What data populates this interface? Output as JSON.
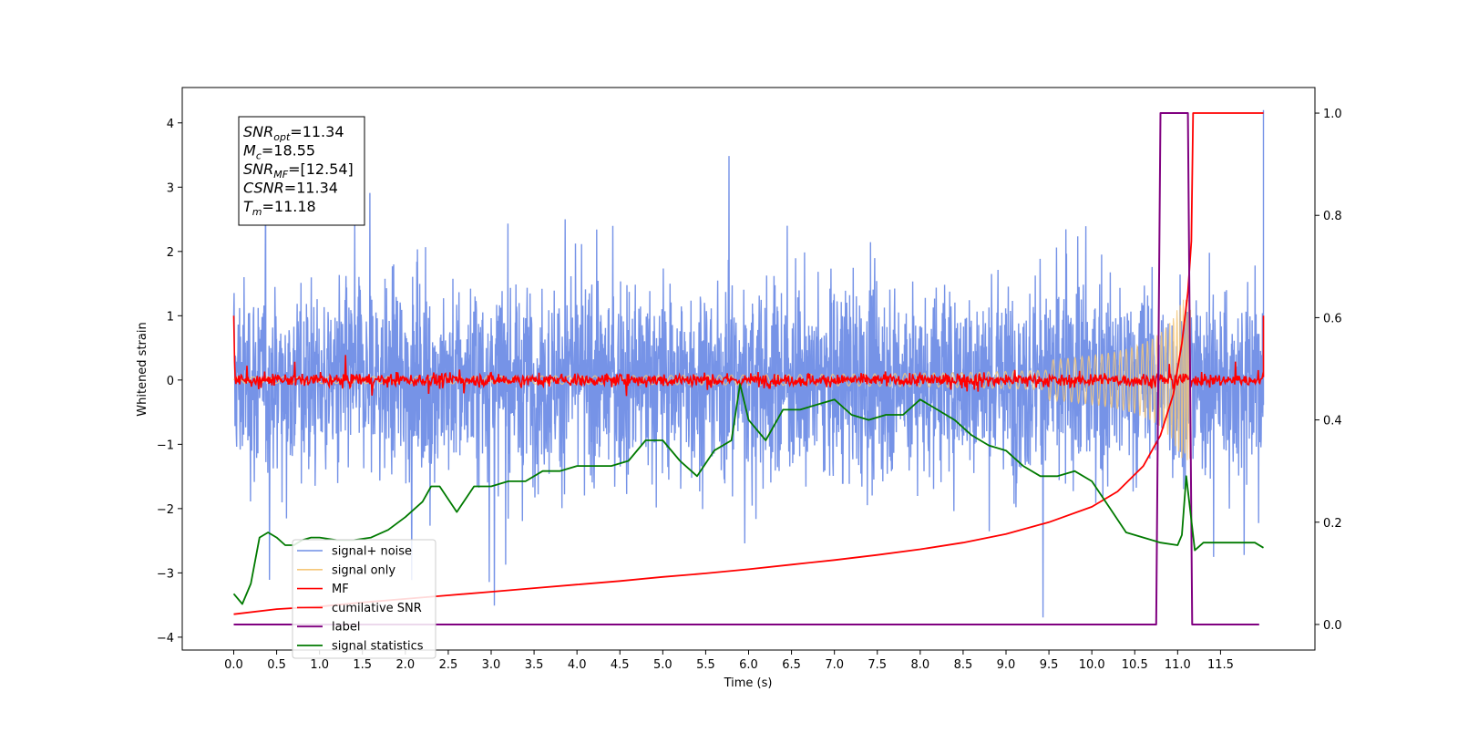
{
  "chart_data": {
    "type": "line",
    "xlabel": "Time (s)",
    "ylabel": "Whitened strain",
    "xlim": [
      -0.6,
      12.6
    ],
    "ylim_left": [
      -4.2,
      4.55
    ],
    "ylim_right": [
      -0.05,
      1.05
    ],
    "x_ticks": [
      0.0,
      0.5,
      1.0,
      1.5,
      2.0,
      2.5,
      3.0,
      3.5,
      4.0,
      4.5,
      5.0,
      5.5,
      6.0,
      6.5,
      7.0,
      7.5,
      8.0,
      8.5,
      9.0,
      9.5,
      10.0,
      10.5,
      11.0,
      11.5
    ],
    "x_tick_labels": [
      "0.0",
      "0.5",
      "1.0",
      "1.5",
      "2.0",
      "2.5",
      "3.0",
      "3.5",
      "4.0",
      "4.5",
      "5.0",
      "5.5",
      "6.0",
      "6.5",
      "7.0",
      "7.5",
      "8.0",
      "8.5",
      "9.0",
      "9.5",
      "10.0",
      "10.5",
      "11.0",
      "11.5"
    ],
    "y_left_ticks": [
      -4,
      -3,
      -2,
      -1,
      0,
      1,
      2,
      3,
      4
    ],
    "y_left_tick_labels": [
      "−4",
      "−3",
      "−2",
      "−1",
      "0",
      "1",
      "2",
      "3",
      "4"
    ],
    "y_right_ticks": [
      0.0,
      0.2,
      0.4,
      0.6,
      0.8,
      1.0
    ],
    "y_right_tick_labels": [
      "0.0",
      "0.2",
      "0.4",
      "0.6",
      "0.8",
      "1.0"
    ],
    "grid": false,
    "legend_position": "lower-left",
    "annotation": [
      {
        "base": "SNR",
        "sub": "opt",
        "value": "=11.34"
      },
      {
        "base": "M",
        "sub": "c",
        "value": "=18.55"
      },
      {
        "base": "SNR",
        "sub": "MF",
        "value": "=[12.54]"
      },
      {
        "base": "CSNR",
        "sub": "",
        "value": "=11.34"
      },
      {
        "base": "T",
        "sub": "m",
        "value": "=11.18"
      }
    ],
    "series": [
      {
        "name": "signal+ noise",
        "color": "#6f8de6",
        "axis": "left",
        "style": "noise band approx. ±1.6 around 0 with spikes to ±3.6; chirp spike to 4.2 near t=11.95"
      },
      {
        "name": "signal only",
        "color": "#f5c87a",
        "axis": "left",
        "style": "chirp envelope growing from 0 to about ±1.2 near t=11.1"
      },
      {
        "name": "MF",
        "color": "#ff0000",
        "axis": "left",
        "style": "noisy trace about ±0.15 around 0"
      },
      {
        "name": "cumilative SNR",
        "color": "#ff0000",
        "axis": "right",
        "x": [
          0.0,
          0.5,
          1.0,
          1.5,
          2.0,
          2.5,
          3.0,
          3.5,
          4.0,
          4.5,
          5.0,
          5.5,
          6.0,
          6.5,
          7.0,
          7.5,
          8.0,
          8.5,
          9.0,
          9.5,
          10.0,
          10.3,
          10.6,
          10.8,
          10.95,
          11.05,
          11.12,
          11.16,
          11.18,
          12.0
        ],
        "values": [
          0.02,
          0.03,
          0.035,
          0.043,
          0.05,
          0.057,
          0.064,
          0.071,
          0.078,
          0.085,
          0.093,
          0.1,
          0.108,
          0.117,
          0.126,
          0.136,
          0.147,
          0.16,
          0.177,
          0.2,
          0.23,
          0.26,
          0.31,
          0.37,
          0.45,
          0.55,
          0.65,
          0.75,
          1.0,
          1.0
        ]
      },
      {
        "name": "label",
        "color": "#800080",
        "axis": "right",
        "x": [
          0.0,
          10.75,
          10.8,
          11.12,
          11.17,
          11.95
        ],
        "values": [
          0.0,
          0.0,
          1.0,
          1.0,
          0.0,
          0.0
        ]
      },
      {
        "name": "signal statistics",
        "color": "#007a00",
        "axis": "right",
        "x": [
          0.0,
          0.1,
          0.2,
          0.3,
          0.4,
          0.5,
          0.6,
          0.7,
          0.8,
          0.9,
          1.0,
          1.2,
          1.4,
          1.6,
          1.8,
          2.0,
          2.2,
          2.3,
          2.4,
          2.6,
          2.8,
          3.0,
          3.2,
          3.4,
          3.6,
          3.8,
          4.0,
          4.2,
          4.4,
          4.6,
          4.8,
          5.0,
          5.2,
          5.4,
          5.6,
          5.8,
          5.9,
          6.0,
          6.2,
          6.4,
          6.6,
          6.8,
          7.0,
          7.2,
          7.4,
          7.6,
          7.8,
          8.0,
          8.2,
          8.4,
          8.6,
          8.8,
          9.0,
          9.2,
          9.4,
          9.6,
          9.8,
          10.0,
          10.2,
          10.4,
          10.6,
          10.8,
          11.0,
          11.05,
          11.1,
          11.2,
          11.3,
          11.5,
          11.7,
          11.9,
          12.0
        ],
        "values": [
          0.06,
          0.04,
          0.08,
          0.17,
          0.18,
          0.17,
          0.155,
          0.155,
          0.165,
          0.17,
          0.17,
          0.165,
          0.165,
          0.17,
          0.185,
          0.21,
          0.24,
          0.27,
          0.27,
          0.22,
          0.27,
          0.27,
          0.28,
          0.28,
          0.3,
          0.3,
          0.31,
          0.31,
          0.31,
          0.32,
          0.36,
          0.36,
          0.32,
          0.29,
          0.34,
          0.36,
          0.47,
          0.4,
          0.36,
          0.42,
          0.42,
          0.43,
          0.44,
          0.41,
          0.4,
          0.41,
          0.41,
          0.44,
          0.42,
          0.4,
          0.37,
          0.35,
          0.34,
          0.31,
          0.29,
          0.29,
          0.3,
          0.28,
          0.23,
          0.18,
          0.17,
          0.16,
          0.155,
          0.175,
          0.29,
          0.145,
          0.16,
          0.16,
          0.16,
          0.16,
          0.15
        ]
      }
    ]
  }
}
